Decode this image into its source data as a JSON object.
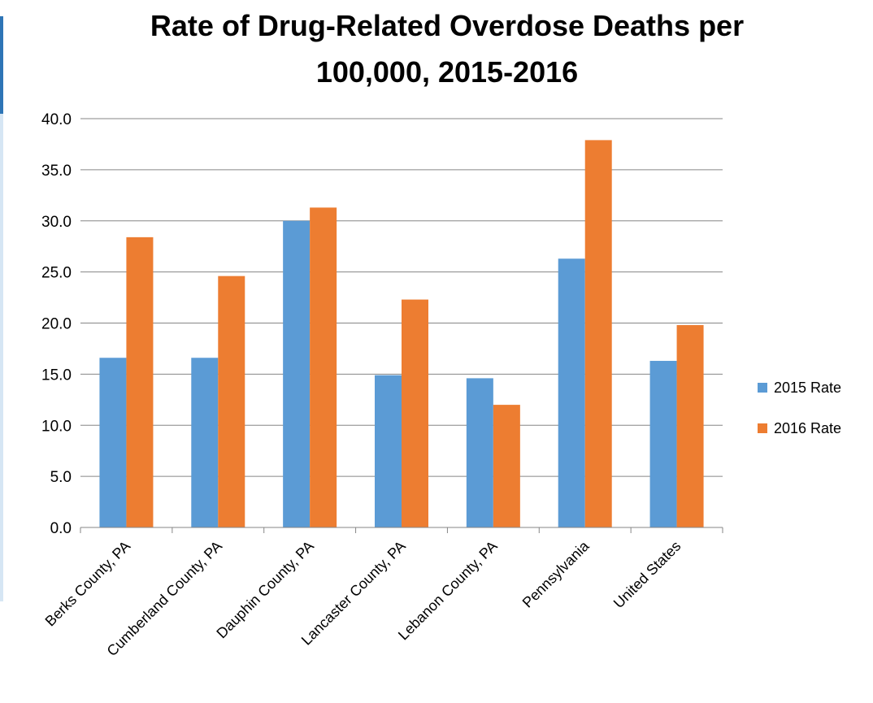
{
  "chart_data": {
    "type": "bar",
    "title": "Rate of Drug-Related Overdose Deaths per 100,000, 2015-2016",
    "title_lines": [
      "Rate of Drug-Related Overdose Deaths per",
      "100,000, 2015-2016"
    ],
    "categories": [
      "Berks County, PA",
      "Cumberland County, PA",
      "Dauphin County, PA",
      "Lancaster County, PA",
      "Lebanon County, PA",
      "Pennsylvania",
      "United States"
    ],
    "series": [
      {
        "name": "2015 Rate",
        "color": "#5B9BD5",
        "values": [
          16.6,
          16.6,
          30.0,
          14.9,
          14.6,
          26.3,
          16.3
        ]
      },
      {
        "name": "2016 Rate",
        "color": "#ED7D31",
        "values": [
          28.4,
          24.6,
          31.3,
          22.3,
          12.0,
          37.9,
          19.8
        ]
      }
    ],
    "ylim": [
      0,
      40
    ],
    "yticks": [
      "0.0",
      "5.0",
      "10.0",
      "15.0",
      "20.0",
      "25.0",
      "30.0",
      "35.0",
      "40.0"
    ],
    "xlabel": "",
    "ylabel": "",
    "grid": true,
    "legend_position": "right"
  },
  "colors": {
    "gridline": "#868686",
    "axis": "#868686",
    "edge_strip": "#2E75B6"
  }
}
